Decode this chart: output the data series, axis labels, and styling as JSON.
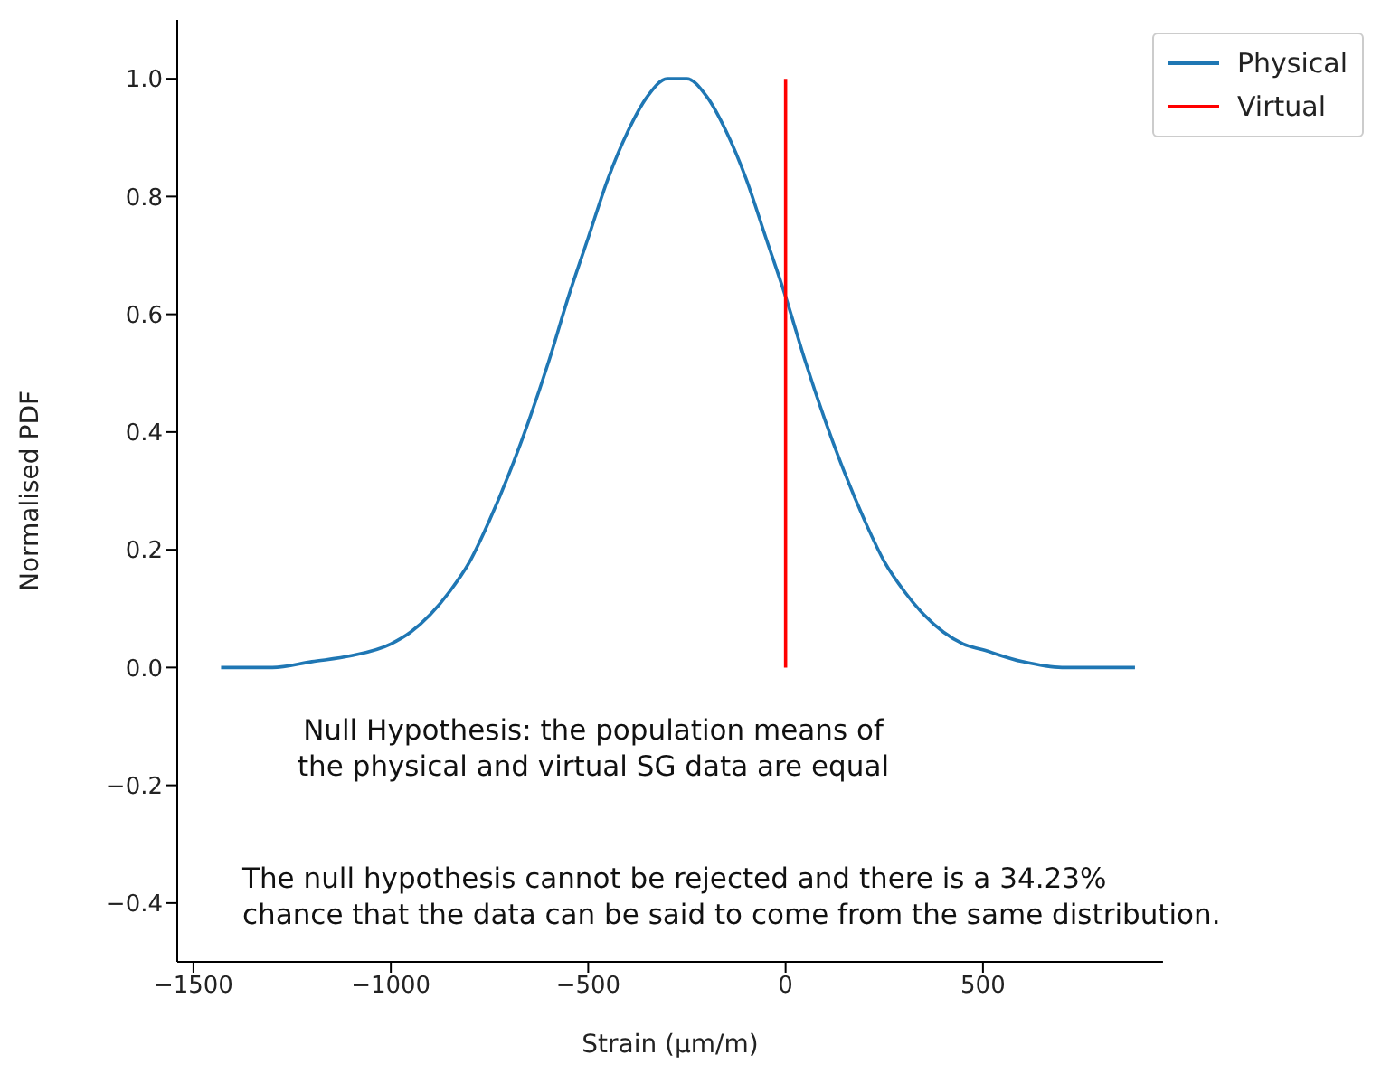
{
  "chart_data": {
    "type": "line",
    "xlabel": "Strain (μm/m)",
    "ylabel": "Normalised PDF",
    "xlim": [
      -1541,
      956
    ],
    "ylim": [
      -0.5,
      1.1
    ],
    "xticks": [
      {
        "value": -1500,
        "label": "−1500"
      },
      {
        "value": -1000,
        "label": "−1000"
      },
      {
        "value": -500,
        "label": "−500"
      },
      0,
      500
    ],
    "yticks": [
      {
        "value": -0.4,
        "label": "−0.4"
      },
      {
        "value": -0.2,
        "label": "−0.2"
      },
      {
        "value": 0,
        "label": "0.0"
      },
      {
        "value": 0.2,
        "label": "0.2"
      },
      {
        "value": 0.4,
        "label": "0.4"
      },
      {
        "value": 0.6,
        "label": "0.6"
      },
      {
        "value": 0.8,
        "label": "0.8"
      },
      {
        "value": 1,
        "label": "1.0"
      }
    ],
    "series": [
      {
        "name": "Physical",
        "color": "#1f77b4",
        "x": [
          -1430,
          -1300,
          -1200,
          -1100,
          -1000,
          -950,
          -900,
          -850,
          -800,
          -750,
          -700,
          -650,
          -600,
          -550,
          -500,
          -450,
          -400,
          -350,
          -300,
          -274,
          -250,
          -200,
          -150,
          -100,
          -50,
          0,
          50,
          100,
          150,
          200,
          250,
          300,
          350,
          400,
          450,
          500,
          600,
          700,
          800,
          885
        ],
        "values": [
          0.0,
          0.0,
          0.01,
          0.02,
          0.04,
          0.06,
          0.09,
          0.13,
          0.18,
          0.25,
          0.33,
          0.42,
          0.52,
          0.63,
          0.73,
          0.83,
          0.91,
          0.97,
          1.0,
          1.0,
          1.0,
          0.97,
          0.91,
          0.83,
          0.73,
          0.63,
          0.52,
          0.42,
          0.33,
          0.25,
          0.18,
          0.13,
          0.09,
          0.06,
          0.04,
          0.03,
          0.01,
          0.0,
          0.0,
          0.0
        ]
      },
      {
        "name": "Virtual",
        "color": "#ff0000",
        "x": [
          0,
          0
        ],
        "values": [
          0,
          1
        ]
      }
    ],
    "legend": "top right",
    "grid": false,
    "marker": "none",
    "line_style": "solid",
    "annotations": [
      "Null Hypothesis: the population means of\nthe physical and virtual SG data are equal",
      "The null hypothesis cannot be rejected and there is a 34.23%\nchance that the data can be said to come from the same distribution."
    ]
  }
}
